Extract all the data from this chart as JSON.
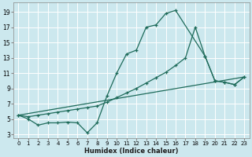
{
  "bg_color": "#cce8ee",
  "grid_color": "#b8d8de",
  "line_color": "#1e6b5a",
  "xlabel": "Humidex (Indice chaleur)",
  "xlim": [
    -0.5,
    23.5
  ],
  "ylim": [
    2.5,
    20.2
  ],
  "xticks": [
    0,
    1,
    2,
    3,
    4,
    5,
    6,
    7,
    8,
    9,
    10,
    11,
    12,
    13,
    14,
    15,
    16,
    17,
    18,
    19,
    20,
    21,
    22,
    23
  ],
  "yticks": [
    3,
    5,
    7,
    9,
    11,
    13,
    15,
    17,
    19
  ],
  "curve1_x": [
    0,
    1,
    2,
    3,
    4,
    5,
    6,
    7,
    8,
    9,
    10,
    11,
    12,
    13,
    14,
    15,
    16,
    19,
    20,
    21,
    22,
    23
  ],
  "curve1_y": [
    5.5,
    5.0,
    4.2,
    4.5,
    4.5,
    4.6,
    4.5,
    3.2,
    4.5,
    8.0,
    11.0,
    13.5,
    14.0,
    17.0,
    17.3,
    18.8,
    19.2,
    13.2,
    10.0,
    9.8,
    9.5,
    10.5
  ],
  "curve2_x": [
    0,
    1,
    2,
    3,
    4,
    5,
    6,
    7,
    8,
    9,
    10,
    11,
    12,
    13,
    14,
    15,
    16,
    17,
    18,
    19,
    20,
    21,
    22,
    23
  ],
  "curve2_y": [
    5.5,
    5.3,
    5.5,
    5.7,
    5.9,
    6.1,
    6.3,
    6.5,
    6.7,
    7.2,
    7.8,
    8.4,
    9.0,
    9.7,
    10.4,
    11.1,
    12.0,
    13.0,
    17.0,
    13.2,
    10.0,
    9.8,
    9.5,
    10.5
  ],
  "curve3_x": [
    0,
    23
  ],
  "curve3_y": [
    5.5,
    10.5
  ]
}
